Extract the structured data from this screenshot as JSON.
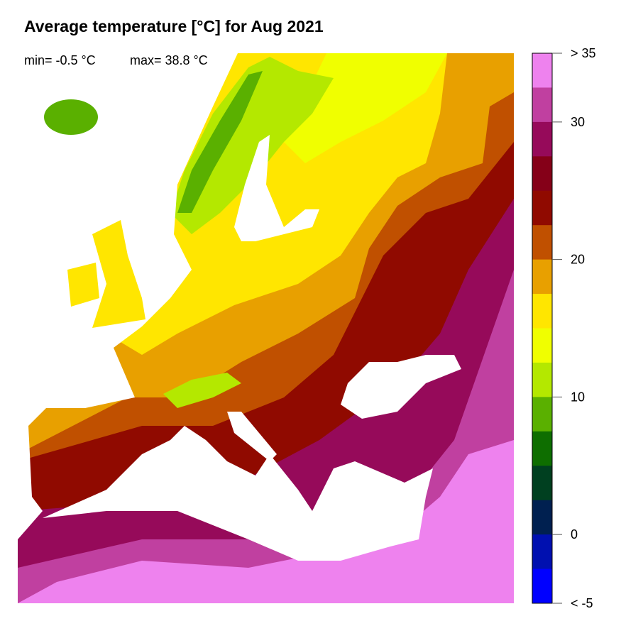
{
  "title": "Average temperature [°C] for Aug 2021",
  "stats": {
    "min": "min= -0.5 °C",
    "max": "max= 38.8 °C"
  },
  "legend": {
    "bands_top_to_bottom": [
      "#EE82EE",
      "#C040A0",
      "#960A5A",
      "#850018",
      "#900A00",
      "#C05000",
      "#E8A000",
      "#FFE600",
      "#F0FF00",
      "#B4E800",
      "#5AB000",
      "#0E6E00",
      "#004020",
      "#002050",
      "#0010B0",
      "#0000FF"
    ],
    "range": [
      -5,
      35
    ],
    "ticks": [
      {
        "value": 35,
        "label": "> 35"
      },
      {
        "value": 30,
        "label": "30"
      },
      {
        "value": 20,
        "label": "20"
      },
      {
        "value": 10,
        "label": "10"
      },
      {
        "value": 0,
        "label": "0"
      },
      {
        "value": -5,
        "label": "< -5"
      }
    ]
  }
}
